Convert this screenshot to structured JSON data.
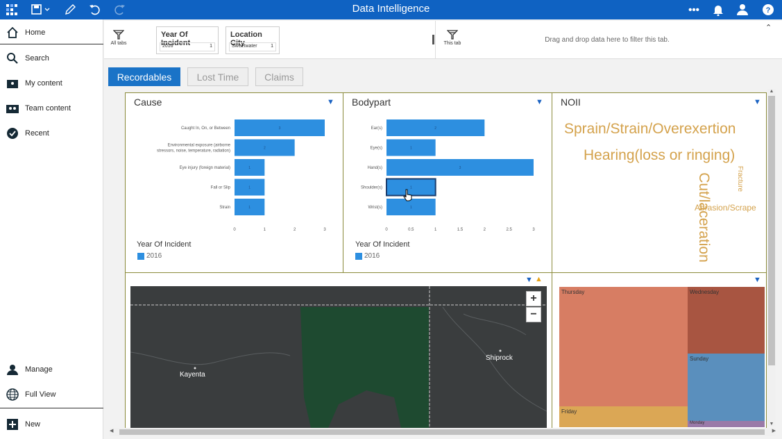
{
  "header": {
    "title": "Data Intelligence",
    "icons": [
      "apps-grid-icon",
      "save-icon",
      "edit-icon",
      "undo-icon",
      "redo-icon",
      "more-icon",
      "bell-icon",
      "user-icon",
      "help-icon"
    ]
  },
  "sidebar": {
    "items": [
      {
        "label": "Home",
        "icon": "home-icon"
      },
      {
        "label": "Search",
        "icon": "search-icon"
      },
      {
        "label": "My content",
        "icon": "folder-icon"
      },
      {
        "label": "Team content",
        "icon": "team-icon"
      },
      {
        "label": "Recent",
        "icon": "clock-icon"
      }
    ],
    "bottom": [
      {
        "label": "Manage",
        "icon": "manage-icon"
      },
      {
        "label": "Full View",
        "icon": "globe-icon"
      },
      {
        "label": "New",
        "icon": "plus-icon"
      }
    ]
  },
  "filters": {
    "all_tabs": "All tabs",
    "this_tab": "This tab",
    "drop_hint": "Drag and drop data here to filter this tab.",
    "chips": [
      {
        "title": "Year Of Incident",
        "value": "2016",
        "count": "1"
      },
      {
        "title": "Location City",
        "value": "Sweetwater",
        "count": "1"
      }
    ]
  },
  "tabs": [
    "Recordables",
    "Lost Time",
    "Claims"
  ],
  "panels": {
    "cause": "Cause",
    "bodypart": "Bodypart",
    "noii": "NOII"
  },
  "legend": {
    "title": "Year Of Incident",
    "item": "2016",
    "color": "#2d8fe0"
  },
  "chart_data": [
    {
      "type": "bar",
      "title": "Cause",
      "categories": [
        "Caught In, On, or Between",
        "Environmental exposure (airborne stressors, noise, temperature, radiation)",
        "Eye injury (foreign material)",
        "Fall or Slip",
        "Strain"
      ],
      "values": [
        3,
        2,
        1,
        1,
        1
      ],
      "xticks": [
        "0",
        "1",
        "2",
        "3"
      ],
      "xlim": [
        0,
        3
      ],
      "series": [
        {
          "name": "2016",
          "values": [
            3,
            2,
            1,
            1,
            1
          ]
        }
      ]
    },
    {
      "type": "bar",
      "title": "Bodypart",
      "categories": [
        "Ear(s)",
        "Eye(s)",
        "Hand(s)",
        "Shoulder(s)",
        "Wrist(s)"
      ],
      "values": [
        2,
        1,
        3,
        1,
        1
      ],
      "xticks": [
        "0",
        "0.5",
        "1",
        "1.5",
        "2",
        "2.5",
        "3"
      ],
      "xlim": [
        0,
        3
      ],
      "series": [
        {
          "name": "2016",
          "values": [
            2,
            1,
            3,
            1,
            1
          ]
        }
      ]
    }
  ],
  "wordcloud": [
    "Sprain/Strain/Overexertion",
    "Hearing(loss or ringing)",
    "Cut/laceration",
    "Abrasion/Scrape",
    "Fracture"
  ],
  "map": {
    "labels": [
      "Kayenta",
      "Shiprock"
    ],
    "zoom_in": "+",
    "zoom_out": "−"
  },
  "treemap": [
    "Thursday",
    "Wednesday",
    "Sunday",
    "Friday",
    "Monday"
  ]
}
